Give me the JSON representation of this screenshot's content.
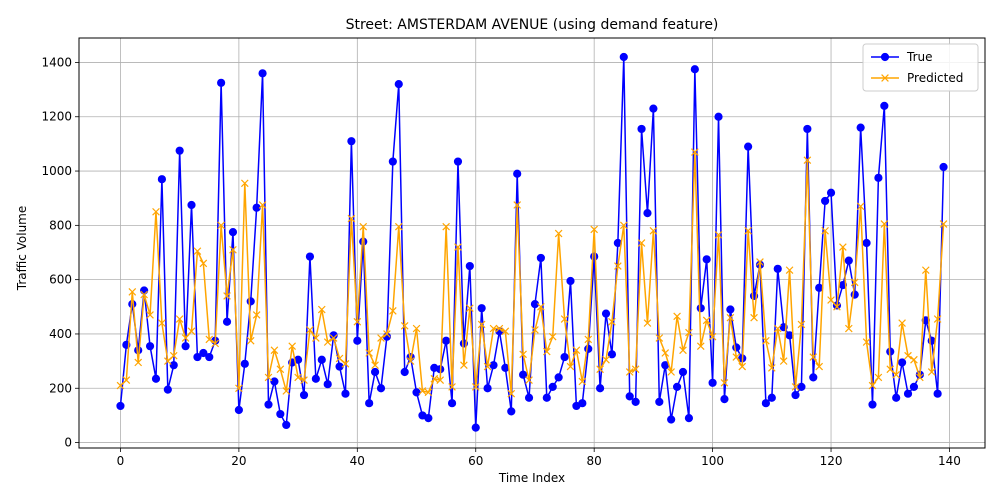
{
  "chart_data": {
    "type": "line",
    "title": "Street: AMSTERDAM AVENUE (using demand feature)",
    "xlabel": "Time Index",
    "ylabel": "Traffic Volume",
    "xlim": [
      -7,
      146
    ],
    "ylim": [
      -20,
      1490
    ],
    "xticks": [
      0,
      20,
      40,
      60,
      80,
      100,
      120,
      140
    ],
    "yticks": [
      0,
      200,
      400,
      600,
      800,
      1000,
      1200,
      1400
    ],
    "grid": true,
    "legend": "top-right",
    "x": [
      0,
      1,
      2,
      3,
      4,
      5,
      6,
      7,
      8,
      9,
      10,
      11,
      12,
      13,
      14,
      15,
      16,
      17,
      18,
      19,
      20,
      21,
      22,
      23,
      24,
      25,
      26,
      27,
      28,
      29,
      30,
      31,
      32,
      33,
      34,
      35,
      36,
      37,
      38,
      39,
      40,
      41,
      42,
      43,
      44,
      45,
      46,
      47,
      48,
      49,
      50,
      51,
      52,
      53,
      54,
      55,
      56,
      57,
      58,
      59,
      60,
      61,
      62,
      63,
      64,
      65,
      66,
      67,
      68,
      69,
      70,
      71,
      72,
      73,
      74,
      75,
      76,
      77,
      78,
      79,
      80,
      81,
      82,
      83,
      84,
      85,
      86,
      87,
      88,
      89,
      90,
      91,
      92,
      93,
      94,
      95,
      96,
      97,
      98,
      99,
      100,
      101,
      102,
      103,
      104,
      105,
      106,
      107,
      108,
      109,
      110,
      111,
      112,
      113,
      114,
      115,
      116,
      117,
      118,
      119,
      120,
      121,
      122,
      123,
      124,
      125,
      126,
      127,
      128,
      129,
      130,
      131,
      132,
      133,
      134,
      135,
      136,
      137,
      138,
      139
    ],
    "series": [
      {
        "name": "True",
        "color": "#0000ff",
        "marker": "circle",
        "values": [
          135,
          360,
          510,
          340,
          560,
          355,
          235,
          970,
          195,
          285,
          1075,
          355,
          875,
          315,
          330,
          315,
          375,
          1325,
          445,
          775,
          120,
          290,
          520,
          865,
          1360,
          140,
          225,
          105,
          65,
          295,
          305,
          175,
          685,
          235,
          305,
          215,
          395,
          280,
          180,
          1110,
          375,
          740,
          145,
          260,
          200,
          390,
          1035,
          1320,
          260,
          315,
          185,
          100,
          90,
          275,
          270,
          375,
          145,
          1035,
          365,
          650,
          55,
          495,
          200,
          285,
          410,
          275,
          115,
          990,
          250,
          165,
          510,
          680,
          165,
          205,
          240,
          315,
          595,
          135,
          145,
          345,
          685,
          200,
          475,
          325,
          735,
          1420,
          170,
          150,
          1155,
          845,
          1230,
          150,
          285,
          85,
          205,
          260,
          90,
          1375,
          495,
          675,
          220,
          1200,
          160,
          490,
          350,
          310,
          1090,
          540,
          655,
          145,
          165,
          640,
          425,
          395,
          175,
          205,
          1155,
          240,
          570,
          890,
          920,
          505,
          580,
          670,
          545,
          1160,
          735,
          140,
          975,
          1240,
          335,
          165,
          295,
          180,
          205,
          250,
          450,
          375,
          180,
          1015
        ]
      },
      {
        "name": "Predicted",
        "color": "#ffa500",
        "marker": "x",
        "values": [
          210,
          230,
          555,
          295,
          545,
          470,
          850,
          440,
          300,
          320,
          455,
          385,
          410,
          705,
          660,
          380,
          365,
          800,
          540,
          710,
          200,
          955,
          375,
          470,
          875,
          240,
          340,
          270,
          190,
          355,
          240,
          230,
          415,
          385,
          490,
          370,
          385,
          310,
          290,
          825,
          445,
          795,
          330,
          285,
          385,
          400,
          485,
          795,
          430,
          300,
          420,
          190,
          185,
          235,
          230,
          795,
          205,
          720,
          285,
          495,
          205,
          435,
          280,
          420,
          420,
          410,
          180,
          875,
          325,
          230,
          415,
          500,
          335,
          390,
          770,
          455,
          280,
          340,
          225,
          380,
          785,
          270,
          305,
          445,
          650,
          800,
          260,
          270,
          735,
          440,
          780,
          385,
          330,
          260,
          465,
          340,
          405,
          1070,
          355,
          450,
          390,
          765,
          220,
          460,
          315,
          280,
          780,
          460,
          665,
          375,
          275,
          420,
          300,
          635,
          205,
          435,
          1040,
          315,
          280,
          780,
          525,
          500,
          720,
          420,
          590,
          870,
          370,
          210,
          240,
          805,
          270,
          250,
          440,
          320,
          305,
          240,
          635,
          260,
          455,
          805
        ]
      }
    ]
  }
}
